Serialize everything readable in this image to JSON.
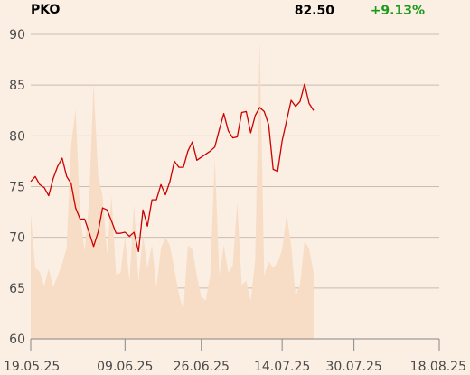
{
  "header": {
    "symbol": "PKO",
    "price": "82.50",
    "change": "+9.13%"
  },
  "colors": {
    "background": "#fbeee2",
    "line": "#cc0000",
    "volume_area": "#f7dcc6",
    "grid": "#c9bcb0",
    "axis": "#888888",
    "change_positive": "#1a9a1a"
  },
  "chart_data": {
    "type": "line",
    "title": "",
    "xlabel": "",
    "ylabel": "",
    "ylim": [
      60,
      90
    ],
    "yticks": [
      60,
      65,
      70,
      75,
      80,
      85,
      90
    ],
    "grid": true,
    "x_range": [
      "2025-05-19",
      "2025-08-18"
    ],
    "x_ticks": [
      {
        "date": "2025-05-19",
        "label": "19.05.25"
      },
      {
        "date": "2025-06-09",
        "label": "09.06.25"
      },
      {
        "date": "2025-06-26",
        "label": "26.06.25"
      },
      {
        "date": "2025-07-14",
        "label": "14.07.25"
      },
      {
        "date": "2025-07-30",
        "label": "30.07.25"
      },
      {
        "date": "2025-08-18",
        "label": "18.08.25"
      }
    ],
    "series": [
      {
        "role": "price",
        "points": [
          [
            "2025-05-19",
            75.5
          ],
          [
            "2025-05-20",
            76.0
          ],
          [
            "2025-05-21",
            75.2
          ],
          [
            "2025-05-22",
            74.9
          ],
          [
            "2025-05-23",
            74.1
          ],
          [
            "2025-05-24",
            75.8
          ],
          [
            "2025-05-25",
            77.0
          ],
          [
            "2025-05-26",
            77.8
          ],
          [
            "2025-05-27",
            76.0
          ],
          [
            "2025-05-28",
            75.3
          ],
          [
            "2025-05-29",
            72.9
          ],
          [
            "2025-05-30",
            71.8
          ],
          [
            "2025-05-31",
            71.8
          ],
          [
            "2025-06-01",
            70.5
          ],
          [
            "2025-06-02",
            69.1
          ],
          [
            "2025-06-03",
            70.5
          ],
          [
            "2025-06-04",
            72.9
          ],
          [
            "2025-06-05",
            72.7
          ],
          [
            "2025-06-06",
            71.6
          ],
          [
            "2025-06-07",
            70.4
          ],
          [
            "2025-06-08",
            70.4
          ],
          [
            "2025-06-09",
            70.5
          ],
          [
            "2025-06-10",
            70.1
          ],
          [
            "2025-06-11",
            70.5
          ],
          [
            "2025-06-12",
            68.6
          ],
          [
            "2025-06-13",
            72.7
          ],
          [
            "2025-06-14",
            71.1
          ],
          [
            "2025-06-15",
            73.7
          ],
          [
            "2025-06-16",
            73.7
          ],
          [
            "2025-06-17",
            75.2
          ],
          [
            "2025-06-18",
            74.2
          ],
          [
            "2025-06-19",
            75.5
          ],
          [
            "2025-06-20",
            77.5
          ],
          [
            "2025-06-21",
            76.9
          ],
          [
            "2025-06-22",
            76.9
          ],
          [
            "2025-06-23",
            78.5
          ],
          [
            "2025-06-24",
            79.4
          ],
          [
            "2025-06-25",
            77.6
          ],
          [
            "2025-06-26",
            77.9
          ],
          [
            "2025-06-27",
            78.2
          ],
          [
            "2025-06-28",
            78.5
          ],
          [
            "2025-06-29",
            78.9
          ],
          [
            "2025-06-30",
            80.6
          ],
          [
            "2025-07-01",
            82.2
          ],
          [
            "2025-07-02",
            80.5
          ],
          [
            "2025-07-03",
            79.8
          ],
          [
            "2025-07-04",
            79.9
          ],
          [
            "2025-07-05",
            82.3
          ],
          [
            "2025-07-06",
            82.4
          ],
          [
            "2025-07-07",
            80.3
          ],
          [
            "2025-07-08",
            82.0
          ],
          [
            "2025-07-09",
            82.8
          ],
          [
            "2025-07-10",
            82.4
          ],
          [
            "2025-07-11",
            81.1
          ],
          [
            "2025-07-12",
            76.7
          ],
          [
            "2025-07-13",
            76.5
          ],
          [
            "2025-07-14",
            79.5
          ],
          [
            "2025-07-15",
            81.5
          ],
          [
            "2025-07-16",
            83.5
          ],
          [
            "2025-07-17",
            82.9
          ],
          [
            "2025-07-18",
            83.4
          ],
          [
            "2025-07-19",
            85.1
          ],
          [
            "2025-07-20",
            83.2
          ],
          [
            "2025-07-21",
            82.5
          ]
        ]
      },
      {
        "role": "volume",
        "points": [
          [
            "2025-05-19",
            72.3
          ],
          [
            "2025-05-20",
            67.0
          ],
          [
            "2025-05-21",
            66.6
          ],
          [
            "2025-05-22",
            65.2
          ],
          [
            "2025-05-23",
            66.9
          ],
          [
            "2025-05-24",
            65.1
          ],
          [
            "2025-05-25",
            66.2
          ],
          [
            "2025-05-26",
            67.4
          ],
          [
            "2025-05-27",
            68.9
          ],
          [
            "2025-05-28",
            79.1
          ],
          [
            "2025-05-29",
            82.6
          ],
          [
            "2025-05-30",
            72.2
          ],
          [
            "2025-05-31",
            68.6
          ],
          [
            "2025-06-01",
            73.5
          ],
          [
            "2025-06-02",
            85.1
          ],
          [
            "2025-06-03",
            76.1
          ],
          [
            "2025-06-04",
            74.1
          ],
          [
            "2025-06-05",
            68.3
          ],
          [
            "2025-06-06",
            74.0
          ],
          [
            "2025-06-07",
            66.3
          ],
          [
            "2025-06-08",
            66.5
          ],
          [
            "2025-06-09",
            70.0
          ],
          [
            "2025-06-10",
            65.6
          ],
          [
            "2025-06-11",
            73.2
          ],
          [
            "2025-06-12",
            65.6
          ],
          [
            "2025-06-13",
            70.2
          ],
          [
            "2025-06-14",
            67.0
          ],
          [
            "2025-06-15",
            69.2
          ],
          [
            "2025-06-16",
            65.0
          ],
          [
            "2025-06-17",
            68.9
          ],
          [
            "2025-06-18",
            70.0
          ],
          [
            "2025-06-19",
            69.2
          ],
          [
            "2025-06-20",
            66.8
          ],
          [
            "2025-06-21",
            64.4
          ],
          [
            "2025-06-22",
            62.8
          ],
          [
            "2025-06-23",
            69.2
          ],
          [
            "2025-06-24",
            68.8
          ],
          [
            "2025-06-25",
            66.2
          ],
          [
            "2025-06-26",
            64.1
          ],
          [
            "2025-06-27",
            63.8
          ],
          [
            "2025-06-28",
            66.3
          ],
          [
            "2025-06-29",
            77.8
          ],
          [
            "2025-06-30",
            66.2
          ],
          [
            "2025-07-01",
            69.2
          ],
          [
            "2025-07-02",
            66.5
          ],
          [
            "2025-07-03",
            67.2
          ],
          [
            "2025-07-04",
            73.4
          ],
          [
            "2025-07-05",
            65.3
          ],
          [
            "2025-07-06",
            65.7
          ],
          [
            "2025-07-07",
            63.7
          ],
          [
            "2025-07-08",
            67.7
          ],
          [
            "2025-07-09",
            89.4
          ],
          [
            "2025-07-10",
            66.2
          ],
          [
            "2025-07-11",
            67.6
          ],
          [
            "2025-07-12",
            67.0
          ],
          [
            "2025-07-13",
            67.5
          ],
          [
            "2025-07-14",
            68.8
          ],
          [
            "2025-07-15",
            72.2
          ],
          [
            "2025-07-16",
            69.2
          ],
          [
            "2025-07-17",
            64.2
          ],
          [
            "2025-07-18",
            65.4
          ],
          [
            "2025-07-19",
            69.6
          ],
          [
            "2025-07-20",
            68.9
          ],
          [
            "2025-07-21",
            66.5
          ]
        ]
      }
    ]
  }
}
